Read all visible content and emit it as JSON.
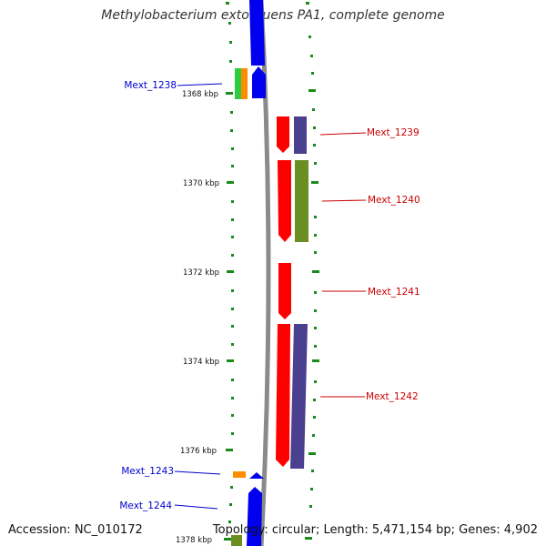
{
  "title": "Methylobacterium extorquens PA1, complete genome",
  "footer": {
    "accession": "Accession: NC_010172",
    "topology": "Topology: circular; Length: 5,471,154 bp; Genes: 4,902"
  },
  "scale": {
    "ticks": [
      "1368 kbp",
      "1370 kbp",
      "1372 kbp",
      "1374 kbp",
      "1376 kbp",
      "1378 kbp"
    ]
  },
  "genes": {
    "left": [
      "Mext_1238",
      "Mext_1243",
      "Mext_1244"
    ],
    "right": [
      "Mext_1239",
      "Mext_1240",
      "Mext_1241",
      "Mext_1242"
    ]
  },
  "colors": {
    "forward_strand": "#0000ee",
    "reverse_strand": "#ff0000",
    "left_label": "#0000cc",
    "right_label": "#cc0000",
    "tick": "#008000",
    "backbone": "#888888",
    "cog_purple": "#4b3f8f",
    "cog_olive": "#6b8e23",
    "cog_green": "#2ecc40",
    "cog_orange": "#ff8c00"
  }
}
